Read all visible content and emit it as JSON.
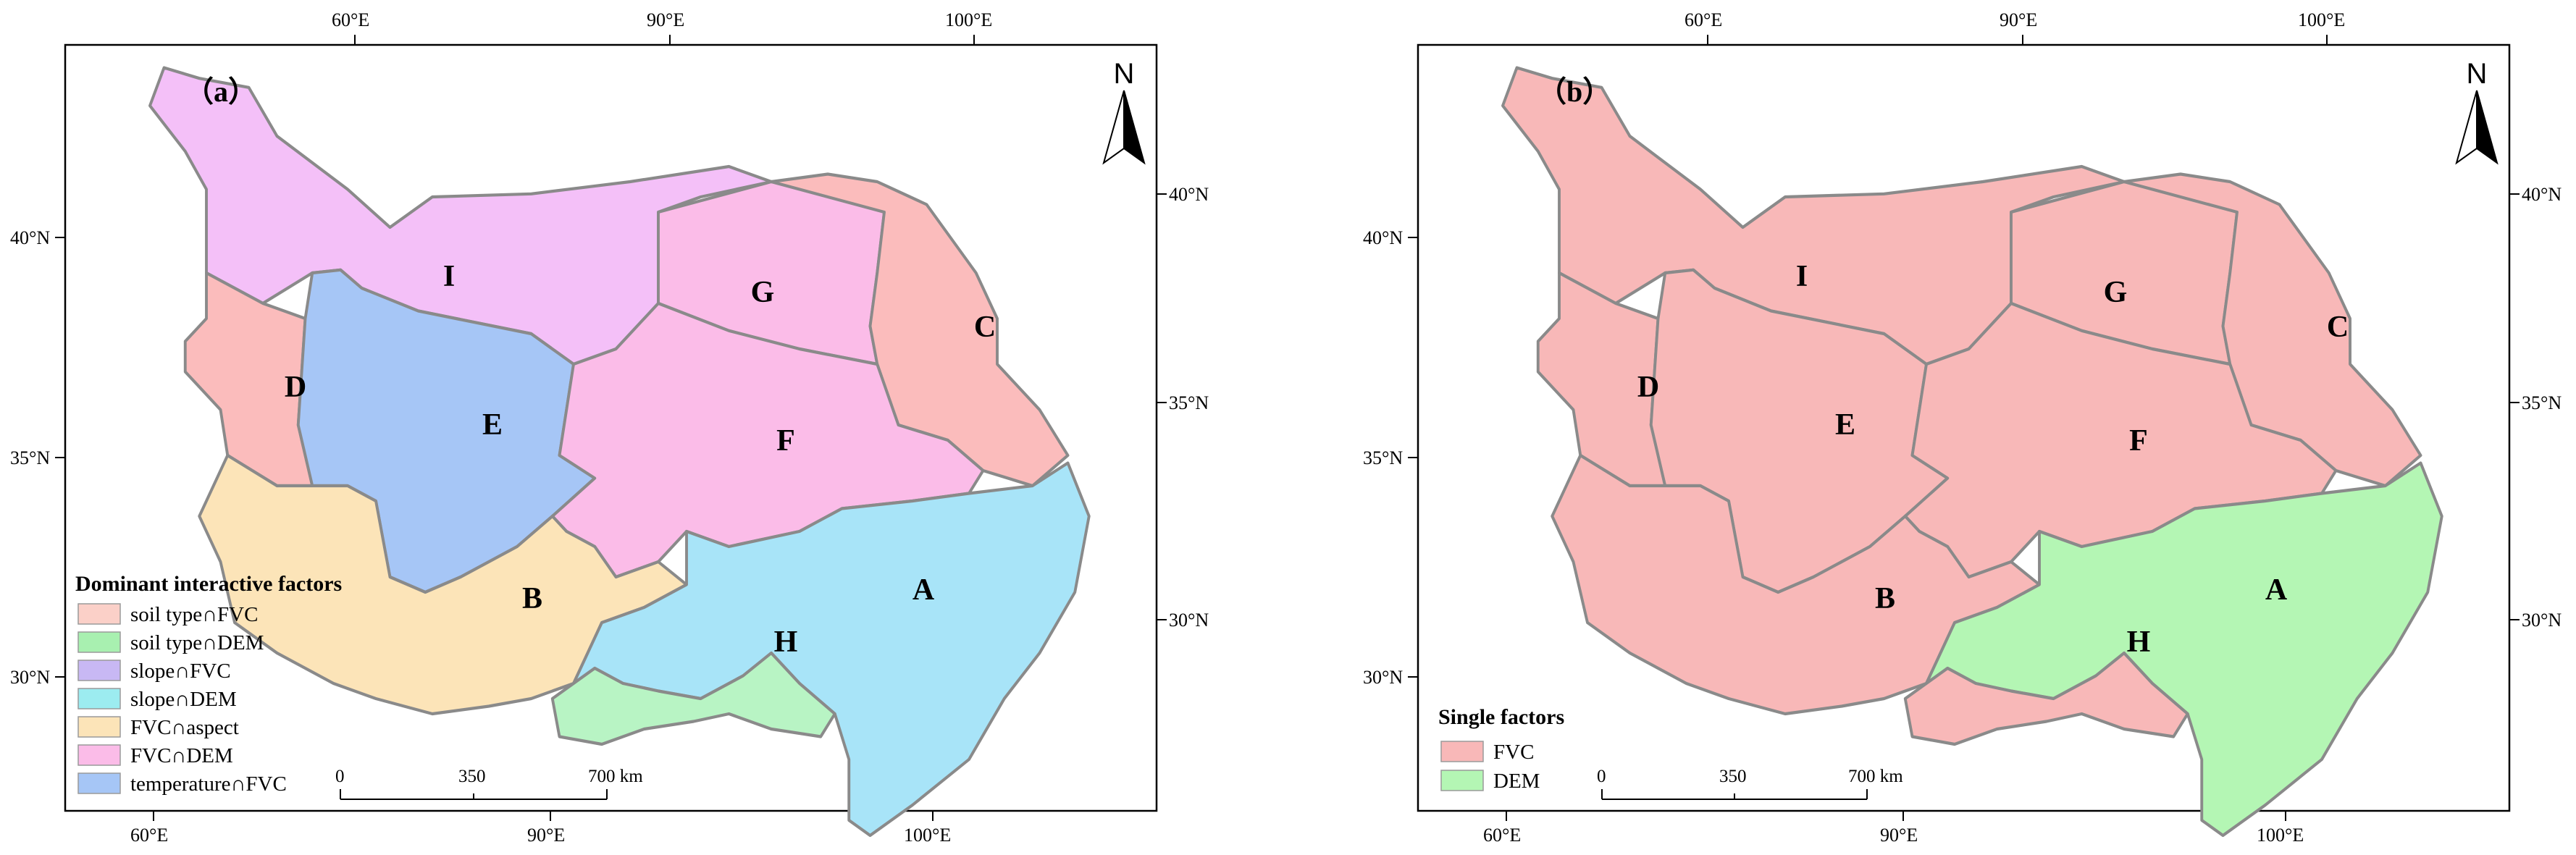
{
  "panels": [
    {
      "id": "a",
      "tag": "（a）",
      "top_ticks": [
        "60°E",
        "90°E",
        "100°E"
      ],
      "bottom_ticks": [
        "60°E",
        "90°E",
        "100°E"
      ],
      "left_ticks": [
        "40°N",
        "35°N",
        "30°N"
      ],
      "right_ticks": [
        "40°N",
        "35°N",
        "30°N"
      ],
      "north_label": "N",
      "region_labels": [
        "A",
        "B",
        "C",
        "D",
        "E",
        "F",
        "G",
        "H",
        "I"
      ],
      "region_colors": {
        "A": "#a8e4f8",
        "B": "#fce4b8",
        "C": "#fbbcbc",
        "D": "#fbbcbc",
        "E": "#a6c6f6",
        "F": "#fbbce8",
        "G": "#fbbce8",
        "H": "#b8f4c4",
        "I": "#f4c0f8"
      },
      "legend": {
        "title": "Dominant interactive factors",
        "items": [
          {
            "label": "soil type∩FVC",
            "color": "#fbd0c8"
          },
          {
            "label": "soil type∩DEM",
            "color": "#a8f0b0"
          },
          {
            "label": "slope∩FVC",
            "color": "#c8b8f4"
          },
          {
            "label": "slope∩DEM",
            "color": "#9cecf0"
          },
          {
            "label": "FVC∩aspect",
            "color": "#fce4b8"
          },
          {
            "label": "FVC∩DEM",
            "color": "#fbbce8"
          },
          {
            "label": "temperature∩FVC",
            "color": "#a6c6f6"
          }
        ]
      },
      "scale_bar": {
        "labels": [
          "0",
          "350",
          "700 km"
        ]
      }
    },
    {
      "id": "b",
      "tag": "（b）",
      "top_ticks": [
        "60°E",
        "90°E",
        "100°E"
      ],
      "bottom_ticks": [
        "60°E",
        "90°E",
        "100°E"
      ],
      "left_ticks": [
        "40°N",
        "35°N",
        "30°N"
      ],
      "right_ticks": [
        "40°N",
        "35°N",
        "30°N"
      ],
      "north_label": "N",
      "region_labels": [
        "A",
        "B",
        "C",
        "D",
        "E",
        "F",
        "G",
        "H",
        "I"
      ],
      "region_colors": {
        "A": "#b4f6b4",
        "B": "#f8b8b8",
        "C": "#f8b8b8",
        "D": "#f8b8b8",
        "E": "#f8b8b8",
        "F": "#f8b8b8",
        "G": "#f8b8b8",
        "H": "#f8b8b8",
        "I": "#f8b8b8"
      },
      "legend": {
        "title": "Single factors",
        "items": [
          {
            "label": "FVC",
            "color": "#f8b8b8"
          },
          {
            "label": "DEM",
            "color": "#b4f6b4"
          }
        ]
      },
      "scale_bar": {
        "labels": [
          "0",
          "350",
          "700 km"
        ]
      }
    }
  ]
}
